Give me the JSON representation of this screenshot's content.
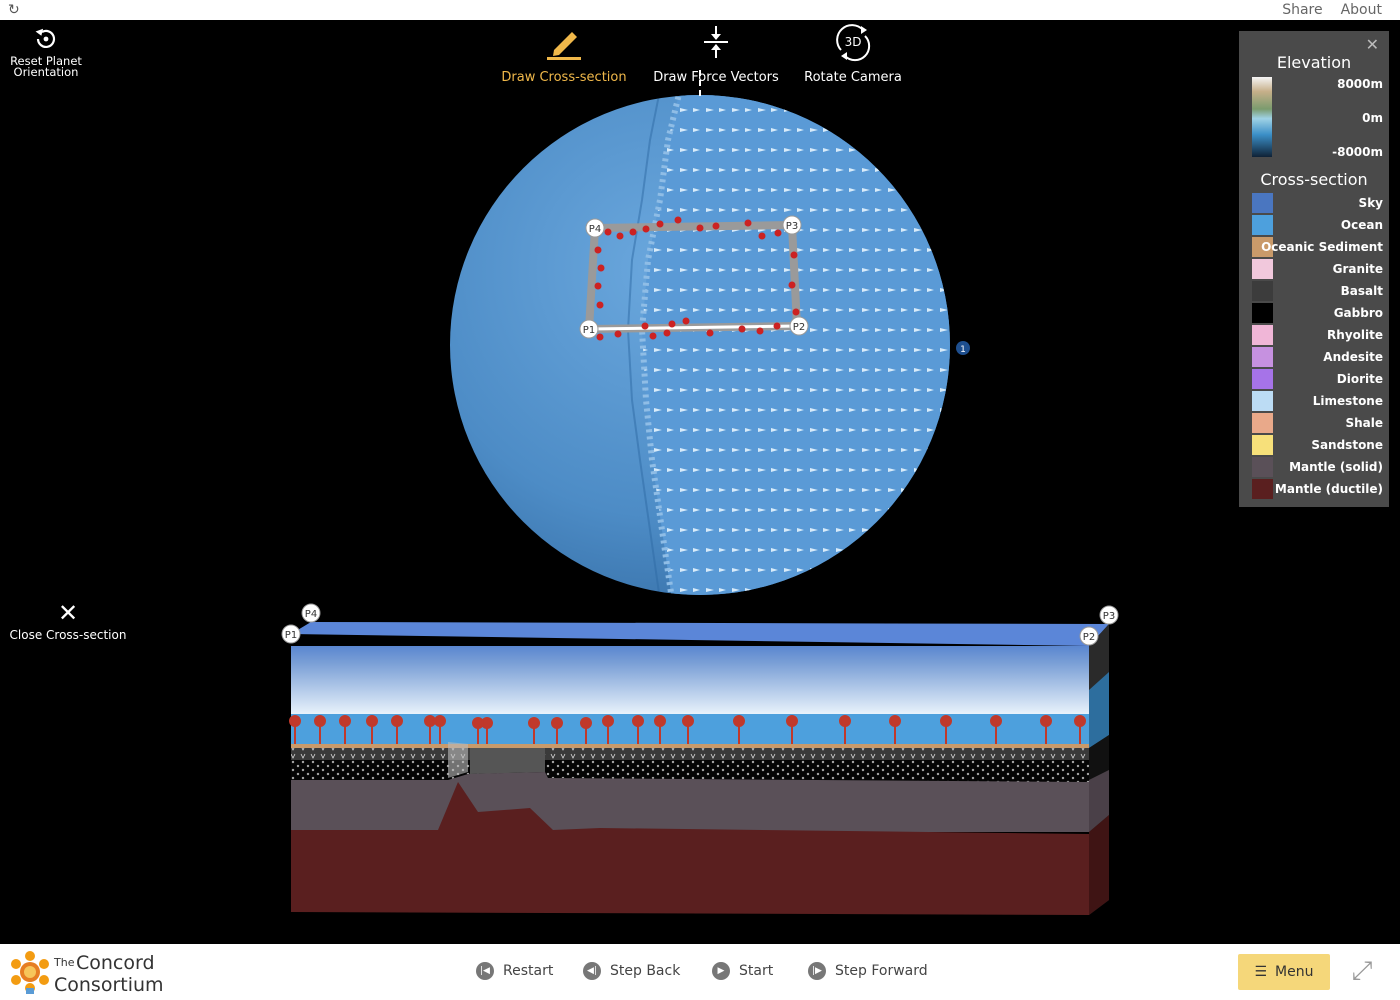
{
  "topbar": {
    "share": "Share",
    "about": "About"
  },
  "toolbar": {
    "reset_label_1": "Reset Planet",
    "reset_label_2": "Orientation",
    "draw_cross_section": "Draw Cross-section",
    "draw_force_vectors": "Draw Force Vectors",
    "rotate_camera": "Rotate Camera",
    "rotate_icon_text": "3D"
  },
  "globe": {
    "points": [
      "P1",
      "P2",
      "P3",
      "P4"
    ],
    "plate_badge": "1"
  },
  "cross_section": {
    "close_label": "Close Cross-section",
    "corner_labels": [
      "P4",
      "P1",
      "P3",
      "P2"
    ]
  },
  "legend": {
    "elevation_title": "Elevation",
    "elevation_labels": [
      "8000m",
      "0m",
      "-8000m"
    ],
    "cross_section_title": "Cross-section",
    "items": [
      {
        "name": "Sky",
        "color": "#4a76c0"
      },
      {
        "name": "Ocean",
        "color": "#4da0dd"
      },
      {
        "name": "Oceanic Sediment",
        "color": "#c99a6a"
      },
      {
        "name": "Granite",
        "color": "#f1c8dc"
      },
      {
        "name": "Basalt",
        "color": "#3c3c3c"
      },
      {
        "name": "Gabbro",
        "color": "#000000"
      },
      {
        "name": "Rhyolite",
        "color": "#f0b6d7"
      },
      {
        "name": "Andesite",
        "color": "#c691e0"
      },
      {
        "name": "Diorite",
        "color": "#a673e8"
      },
      {
        "name": "Limestone",
        "color": "#bcdcf4"
      },
      {
        "name": "Shale",
        "color": "#e9a98a"
      },
      {
        "name": "Sandstone",
        "color": "#f7e07a"
      },
      {
        "name": "Mantle (solid)",
        "color": "#5a5058"
      },
      {
        "name": "Mantle (ductile)",
        "color": "#5a1f1f"
      }
    ]
  },
  "controls": {
    "restart": "Restart",
    "step_back": "Step Back",
    "start": "Start",
    "step_forward": "Step Forward",
    "menu": "Menu"
  },
  "logo": {
    "the": "The",
    "concord": "Concord",
    "consortium": "Consortium"
  }
}
